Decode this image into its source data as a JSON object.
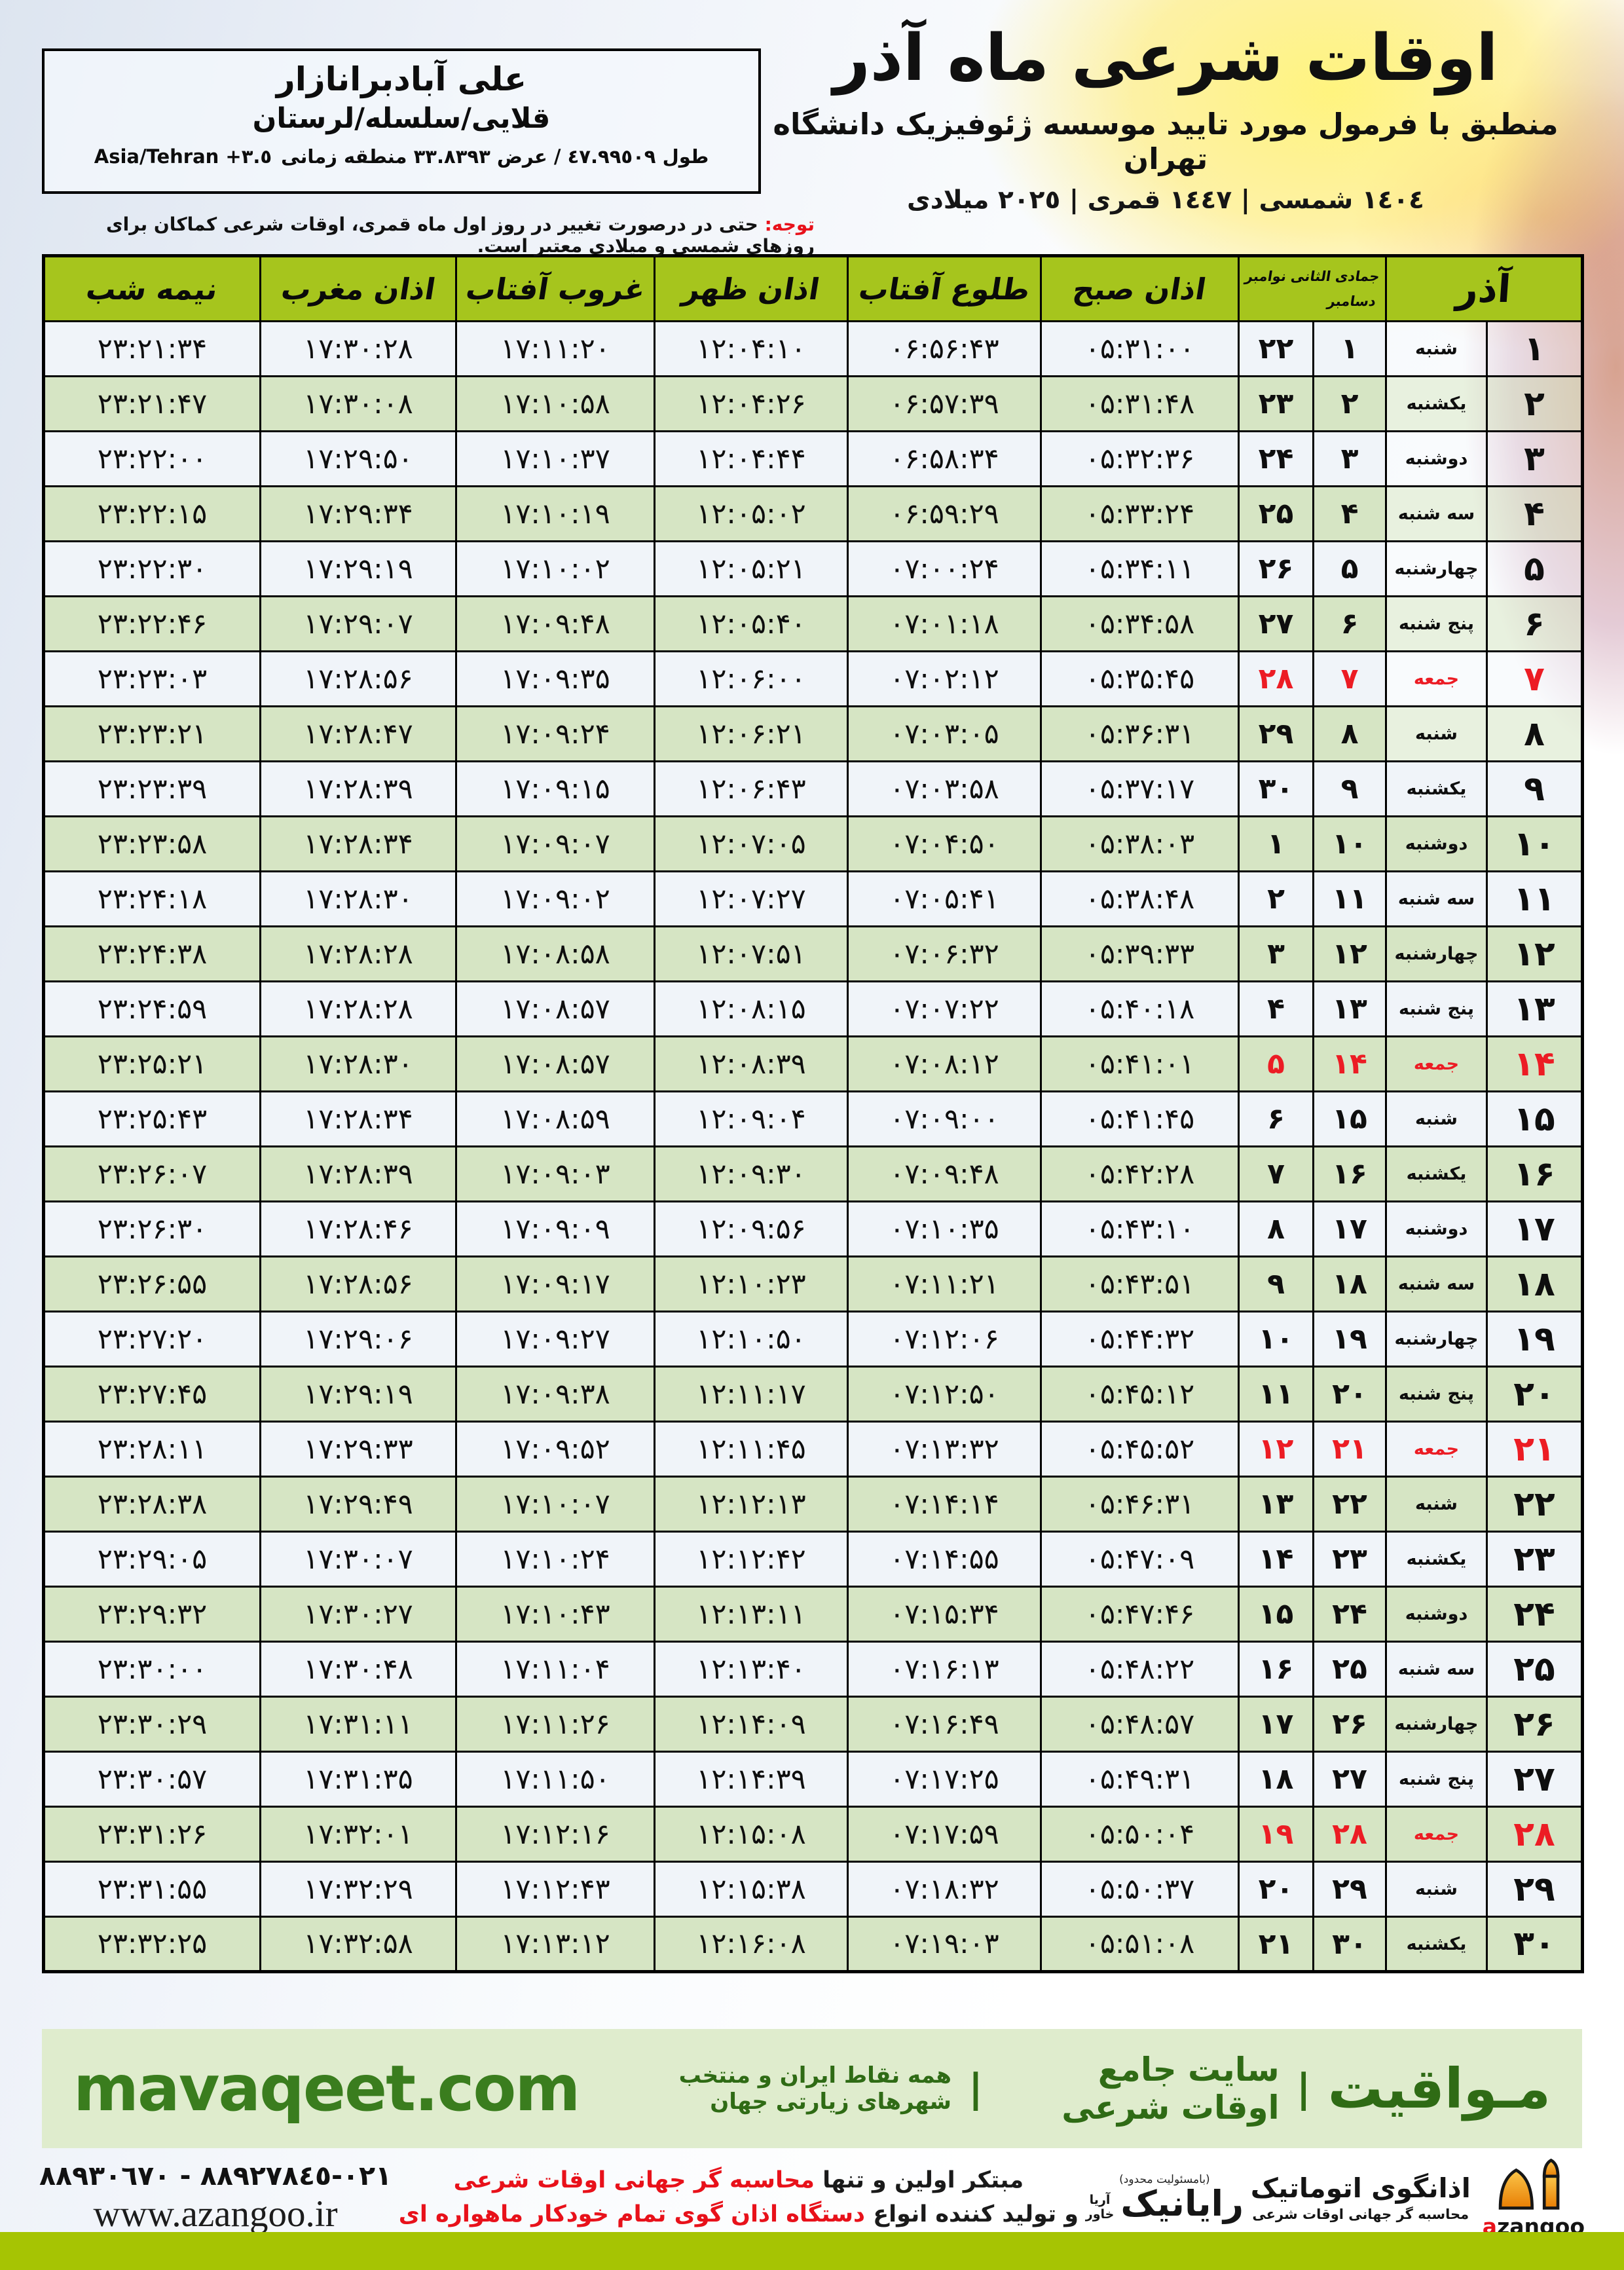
{
  "meta": {
    "title": "اوقات شرعی ماه آذر",
    "subtitle": "منطبق با فرمول مورد تایید موسسه ژئوفیزیک دانشگاه تهران",
    "years": "١٤٠٤ شمسی | ١٤٤٧ قمری | ٢٠٢٥ میلادی"
  },
  "location": {
    "name": "علی آبادبرانازار",
    "region": "قلایی/سلسله/لرستان",
    "coords": "طول ٤٧.٩٩٥٠٩ / عرض ٣٣.٨٣٩٣ منطقه زمانی",
    "timezone": "Asia/Tehran +٣.٥"
  },
  "notice": {
    "label": "توجه:",
    "text": "حتی در درصورت تغییر در روز اول ماه قمری، اوقات شرعی کماکان برای روزهای شمسی و میلادی معتبر است."
  },
  "table": {
    "headers": {
      "azar": "آذر",
      "lunar_top": "جمادی الثانی نوامبر",
      "lunar_bottom": "دسامبر",
      "fajr": "اذان صبح",
      "sunrise": "طلوع آفتاب",
      "dhuhr": "اذان ظهر",
      "sunset": "غروب آفتاب",
      "maghrib": "اذان مغرب",
      "midnight": "نیمه شب"
    },
    "rows": [
      {
        "azar": 1,
        "day": "شنبه",
        "lunar": 1,
        "greg": 22,
        "fajr": "05:31:00",
        "sunrise": "06:56:43",
        "dhuhr": "12:04:10",
        "sunset": "17:11:20",
        "maghrib": "17:30:28",
        "midnight": "23:21:34",
        "friday": false
      },
      {
        "azar": 2,
        "day": "یکشنبه",
        "lunar": 2,
        "greg": 23,
        "fajr": "05:31:48",
        "sunrise": "06:57:39",
        "dhuhr": "12:04:26",
        "sunset": "17:10:58",
        "maghrib": "17:30:08",
        "midnight": "23:21:47",
        "friday": false
      },
      {
        "azar": 3,
        "day": "دوشنبه",
        "lunar": 3,
        "greg": 24,
        "fajr": "05:32:36",
        "sunrise": "06:58:34",
        "dhuhr": "12:04:44",
        "sunset": "17:10:37",
        "maghrib": "17:29:50",
        "midnight": "23:22:00",
        "friday": false
      },
      {
        "azar": 4,
        "day": "سه شنبه",
        "lunar": 4,
        "greg": 25,
        "fajr": "05:33:24",
        "sunrise": "06:59:29",
        "dhuhr": "12:05:02",
        "sunset": "17:10:19",
        "maghrib": "17:29:34",
        "midnight": "23:22:15",
        "friday": false
      },
      {
        "azar": 5,
        "day": "چهارشنبه",
        "lunar": 5,
        "greg": 26,
        "fajr": "05:34:11",
        "sunrise": "07:00:24",
        "dhuhr": "12:05:21",
        "sunset": "17:10:02",
        "maghrib": "17:29:19",
        "midnight": "23:22:30",
        "friday": false
      },
      {
        "azar": 6,
        "day": "پنج شنبه",
        "lunar": 6,
        "greg": 27,
        "fajr": "05:34:58",
        "sunrise": "07:01:18",
        "dhuhr": "12:05:40",
        "sunset": "17:09:48",
        "maghrib": "17:29:07",
        "midnight": "23:22:46",
        "friday": false
      },
      {
        "azar": 7,
        "day": "جمعه",
        "lunar": 7,
        "greg": 28,
        "fajr": "05:35:45",
        "sunrise": "07:02:12",
        "dhuhr": "12:06:00",
        "sunset": "17:09:35",
        "maghrib": "17:28:56",
        "midnight": "23:23:03",
        "friday": true
      },
      {
        "azar": 8,
        "day": "شنبه",
        "lunar": 8,
        "greg": 29,
        "fajr": "05:36:31",
        "sunrise": "07:03:05",
        "dhuhr": "12:06:21",
        "sunset": "17:09:24",
        "maghrib": "17:28:47",
        "midnight": "23:23:21",
        "friday": false
      },
      {
        "azar": 9,
        "day": "یکشنبه",
        "lunar": 9,
        "greg": 30,
        "fajr": "05:37:17",
        "sunrise": "07:03:58",
        "dhuhr": "12:06:43",
        "sunset": "17:09:15",
        "maghrib": "17:28:39",
        "midnight": "23:23:39",
        "friday": false
      },
      {
        "azar": 10,
        "day": "دوشنبه",
        "lunar": 10,
        "greg": 1,
        "fajr": "05:38:03",
        "sunrise": "07:04:50",
        "dhuhr": "12:07:05",
        "sunset": "17:09:07",
        "maghrib": "17:28:34",
        "midnight": "23:23:58",
        "friday": false
      },
      {
        "azar": 11,
        "day": "سه شنبه",
        "lunar": 11,
        "greg": 2,
        "fajr": "05:38:48",
        "sunrise": "07:05:41",
        "dhuhr": "12:07:27",
        "sunset": "17:09:02",
        "maghrib": "17:28:30",
        "midnight": "23:24:18",
        "friday": false
      },
      {
        "azar": 12,
        "day": "چهارشنبه",
        "lunar": 12,
        "greg": 3,
        "fajr": "05:39:33",
        "sunrise": "07:06:32",
        "dhuhr": "12:07:51",
        "sunset": "17:08:58",
        "maghrib": "17:28:28",
        "midnight": "23:24:38",
        "friday": false
      },
      {
        "azar": 13,
        "day": "پنج شنبه",
        "lunar": 13,
        "greg": 4,
        "fajr": "05:40:18",
        "sunrise": "07:07:22",
        "dhuhr": "12:08:15",
        "sunset": "17:08:57",
        "maghrib": "17:28:28",
        "midnight": "23:24:59",
        "friday": false
      },
      {
        "azar": 14,
        "day": "جمعه",
        "lunar": 14,
        "greg": 5,
        "fajr": "05:41:01",
        "sunrise": "07:08:12",
        "dhuhr": "12:08:39",
        "sunset": "17:08:57",
        "maghrib": "17:28:30",
        "midnight": "23:25:21",
        "friday": true
      },
      {
        "azar": 15,
        "day": "شنبه",
        "lunar": 15,
        "greg": 6,
        "fajr": "05:41:45",
        "sunrise": "07:09:00",
        "dhuhr": "12:09:04",
        "sunset": "17:08:59",
        "maghrib": "17:28:34",
        "midnight": "23:25:43",
        "friday": false
      },
      {
        "azar": 16,
        "day": "یکشنبه",
        "lunar": 16,
        "greg": 7,
        "fajr": "05:42:28",
        "sunrise": "07:09:48",
        "dhuhr": "12:09:30",
        "sunset": "17:09:03",
        "maghrib": "17:28:39",
        "midnight": "23:26:07",
        "friday": false
      },
      {
        "azar": 17,
        "day": "دوشنبه",
        "lunar": 17,
        "greg": 8,
        "fajr": "05:43:10",
        "sunrise": "07:10:35",
        "dhuhr": "12:09:56",
        "sunset": "17:09:09",
        "maghrib": "17:28:46",
        "midnight": "23:26:30",
        "friday": false
      },
      {
        "azar": 18,
        "day": "سه شنبه",
        "lunar": 18,
        "greg": 9,
        "fajr": "05:43:51",
        "sunrise": "07:11:21",
        "dhuhr": "12:10:23",
        "sunset": "17:09:17",
        "maghrib": "17:28:56",
        "midnight": "23:26:55",
        "friday": false
      },
      {
        "azar": 19,
        "day": "چهارشنبه",
        "lunar": 19,
        "greg": 10,
        "fajr": "05:44:32",
        "sunrise": "07:12:06",
        "dhuhr": "12:10:50",
        "sunset": "17:09:27",
        "maghrib": "17:29:06",
        "midnight": "23:27:20",
        "friday": false
      },
      {
        "azar": 20,
        "day": "پنج شنبه",
        "lunar": 20,
        "greg": 11,
        "fajr": "05:45:12",
        "sunrise": "07:12:50",
        "dhuhr": "12:11:17",
        "sunset": "17:09:38",
        "maghrib": "17:29:19",
        "midnight": "23:27:45",
        "friday": false
      },
      {
        "azar": 21,
        "day": "جمعه",
        "lunar": 21,
        "greg": 12,
        "fajr": "05:45:52",
        "sunrise": "07:13:32",
        "dhuhr": "12:11:45",
        "sunset": "17:09:52",
        "maghrib": "17:29:33",
        "midnight": "23:28:11",
        "friday": true
      },
      {
        "azar": 22,
        "day": "شنبه",
        "lunar": 22,
        "greg": 13,
        "fajr": "05:46:31",
        "sunrise": "07:14:14",
        "dhuhr": "12:12:13",
        "sunset": "17:10:07",
        "maghrib": "17:29:49",
        "midnight": "23:28:38",
        "friday": false
      },
      {
        "azar": 23,
        "day": "یکشنبه",
        "lunar": 23,
        "greg": 14,
        "fajr": "05:47:09",
        "sunrise": "07:14:55",
        "dhuhr": "12:12:42",
        "sunset": "17:10:24",
        "maghrib": "17:30:07",
        "midnight": "23:29:05",
        "friday": false
      },
      {
        "azar": 24,
        "day": "دوشنبه",
        "lunar": 24,
        "greg": 15,
        "fajr": "05:47:46",
        "sunrise": "07:15:34",
        "dhuhr": "12:13:11",
        "sunset": "17:10:43",
        "maghrib": "17:30:27",
        "midnight": "23:29:32",
        "friday": false
      },
      {
        "azar": 25,
        "day": "سه شنبه",
        "lunar": 25,
        "greg": 16,
        "fajr": "05:48:22",
        "sunrise": "07:16:13",
        "dhuhr": "12:13:40",
        "sunset": "17:11:04",
        "maghrib": "17:30:48",
        "midnight": "23:30:00",
        "friday": false
      },
      {
        "azar": 26,
        "day": "چهارشنبه",
        "lunar": 26,
        "greg": 17,
        "fajr": "05:48:57",
        "sunrise": "07:16:49",
        "dhuhr": "12:14:09",
        "sunset": "17:11:26",
        "maghrib": "17:31:11",
        "midnight": "23:30:29",
        "friday": false
      },
      {
        "azar": 27,
        "day": "پنج شنبه",
        "lunar": 27,
        "greg": 18,
        "fajr": "05:49:31",
        "sunrise": "07:17:25",
        "dhuhr": "12:14:39",
        "sunset": "17:11:50",
        "maghrib": "17:31:35",
        "midnight": "23:30:57",
        "friday": false
      },
      {
        "azar": 28,
        "day": "جمعه",
        "lunar": 28,
        "greg": 19,
        "fajr": "05:50:04",
        "sunrise": "07:17:59",
        "dhuhr": "12:15:08",
        "sunset": "17:12:16",
        "maghrib": "17:32:01",
        "midnight": "23:31:26",
        "friday": true
      },
      {
        "azar": 29,
        "day": "شنبه",
        "lunar": 29,
        "greg": 20,
        "fajr": "05:50:37",
        "sunrise": "07:18:32",
        "dhuhr": "12:15:38",
        "sunset": "17:12:43",
        "maghrib": "17:32:29",
        "midnight": "23:31:55",
        "friday": false
      },
      {
        "azar": 30,
        "day": "یکشنبه",
        "lunar": 30,
        "greg": 21,
        "fajr": "05:51:08",
        "sunrise": "07:19:03",
        "dhuhr": "12:16:08",
        "sunset": "17:13:12",
        "maghrib": "17:32:58",
        "midnight": "23:32:25",
        "friday": false
      }
    ]
  },
  "banner": {
    "brand": "مـواقیت",
    "separator": "|",
    "tagline": "سایت جامع اوقات شرعی",
    "scope": "همه نقاط ایران و منتخب شهرهای زیارتی جهان",
    "url": "mavaqeet.com"
  },
  "footer": {
    "phone": "٠٢١-٨٨٩٢٧٨٤٥ - ٨٨٩٣٠٦٧٠",
    "site": "www.azangoo.ir",
    "line1_black": "مبتکر اولین و تنها ",
    "line1_red": "محاسبه گر جهانی اوقات شرعی",
    "line2_black": "و تولید کننده انواع ",
    "line2_red": "دستگاه اذان گوی تمام خودکار ماهواره ای",
    "rayanik_note": "(بامسئولیت محدود)",
    "rayanik_name": "رایانیک",
    "rayanik_sub1": "آریا",
    "rayanik_sub2": "خاور",
    "azangoo_fa": "اذانگوی اتوماتیک",
    "azangoo_tagline": "محاسبه گر جهانی اوقات شرعی",
    "azangoo_latin_a": "a",
    "azangoo_latin_rest": "zangoo"
  },
  "colors": {
    "header_green": "#a6c51d",
    "row_green": "#d6e5c4",
    "row_light": "#f0f4f9",
    "friday_red": "#ec1c24",
    "banner_bg": "#dfeccd",
    "brand_green": "#3a7d1e",
    "strip_green": "#a6c403"
  }
}
